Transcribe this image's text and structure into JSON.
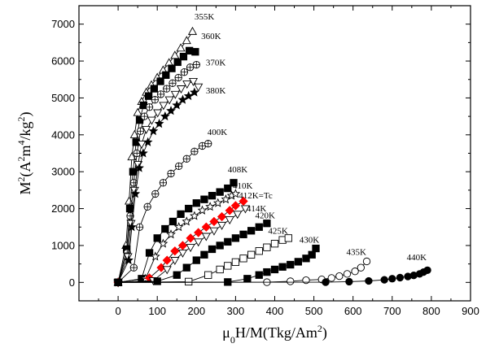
{
  "chart_data": {
    "type": "scatter",
    "title": "",
    "xlabel": "μ0H/M(Tkg/Am2)",
    "ylabel": "M2(A2m4/kg2)",
    "xlim": [
      -100,
      900
    ],
    "ylim": [
      -500,
      7500
    ],
    "xticks": [
      "0",
      "100",
      "200",
      "300",
      "400",
      "500",
      "600",
      "700",
      "800",
      "900"
    ],
    "yticks": [
      "0",
      "1000",
      "2000",
      "3000",
      "4000",
      "5000",
      "6000",
      "7000"
    ],
    "grid": false,
    "series": [
      {
        "name": "355K",
        "marker": "triangle-open",
        "color": "#000000",
        "label_anchor": [
          195,
          7120
        ],
        "points": [
          [
            0,
            0
          ],
          [
            20,
            1000
          ],
          [
            28,
            2200
          ],
          [
            35,
            3400
          ],
          [
            42,
            4000
          ],
          [
            50,
            4600
          ],
          [
            60,
            4900
          ],
          [
            72,
            5150
          ],
          [
            85,
            5350
          ],
          [
            100,
            5550
          ],
          [
            115,
            5750
          ],
          [
            130,
            5950
          ],
          [
            145,
            6150
          ],
          [
            160,
            6350
          ],
          [
            175,
            6550
          ],
          [
            190,
            6800
          ]
        ]
      },
      {
        "name": "360K",
        "marker": "square-filled",
        "color": "#000000",
        "label_anchor": [
          212,
          6600
        ],
        "points": [
          [
            0,
            0
          ],
          [
            22,
            900
          ],
          [
            30,
            2000
          ],
          [
            38,
            3000
          ],
          [
            46,
            3800
          ],
          [
            55,
            4400
          ],
          [
            65,
            4800
          ],
          [
            78,
            5050
          ],
          [
            92,
            5250
          ],
          [
            108,
            5450
          ],
          [
            122,
            5620
          ],
          [
            137,
            5800
          ],
          [
            152,
            5970
          ],
          [
            167,
            6120
          ],
          [
            182,
            6280
          ],
          [
            197,
            6250
          ]
        ]
      },
      {
        "name": "370K",
        "marker": "circle-plus",
        "color": "#000000",
        "label_anchor": [
          224,
          5880
        ],
        "points": [
          [
            0,
            0
          ],
          [
            23,
            800
          ],
          [
            31,
            1800
          ],
          [
            40,
            2700
          ],
          [
            48,
            3500
          ],
          [
            57,
            4100
          ],
          [
            67,
            4500
          ],
          [
            80,
            4750
          ],
          [
            94,
            4950
          ],
          [
            109,
            5100
          ],
          [
            124,
            5250
          ],
          [
            139,
            5400
          ],
          [
            154,
            5550
          ],
          [
            169,
            5700
          ],
          [
            184,
            5830
          ],
          [
            200,
            5900
          ]
        ]
      },
      {
        "name": "380K",
        "marker": "triangle-down-open",
        "color": "#000000",
        "label_anchor": [
          224,
          5120
        ],
        "points": [
          [
            0,
            0
          ],
          [
            25,
            700
          ],
          [
            33,
            1600
          ],
          [
            42,
            2500
          ],
          [
            51,
            3200
          ],
          [
            60,
            3750
          ],
          [
            72,
            4150
          ],
          [
            86,
            4400
          ],
          [
            101,
            4600
          ],
          [
            116,
            4800
          ],
          [
            131,
            4950
          ],
          [
            146,
            5100
          ],
          [
            161,
            5250
          ],
          [
            176,
            5380
          ],
          [
            192,
            5450
          ],
          [
            205,
            5300
          ]
        ]
      },
      {
        "name": "380K-stars",
        "marker": "star-filled",
        "color": "#000000",
        "label_anchor": null,
        "points": [
          [
            0,
            0
          ],
          [
            27,
            600
          ],
          [
            35,
            1500
          ],
          [
            44,
            2400
          ],
          [
            54,
            3100
          ],
          [
            64,
            3500
          ],
          [
            76,
            3800
          ],
          [
            90,
            4100
          ],
          [
            105,
            4300
          ],
          [
            120,
            4500
          ],
          [
            135,
            4650
          ],
          [
            150,
            4800
          ],
          [
            165,
            4950
          ],
          [
            180,
            5050
          ],
          [
            195,
            5150
          ]
        ]
      },
      {
        "name": "400K",
        "marker": "circle-plus",
        "color": "#000000",
        "label_anchor": [
          228,
          4000
        ],
        "points": [
          [
            0,
            0
          ],
          [
            40,
            400
          ],
          [
            55,
            1500
          ],
          [
            75,
            2050
          ],
          [
            95,
            2400
          ],
          [
            115,
            2700
          ],
          [
            135,
            2950
          ],
          [
            155,
            3150
          ],
          [
            175,
            3350
          ],
          [
            195,
            3550
          ],
          [
            215,
            3700
          ],
          [
            230,
            3760
          ]
        ]
      },
      {
        "name": "408K",
        "marker": "square-filled",
        "color": "#000000",
        "label_anchor": [
          280,
          2980
        ],
        "points": [
          [
            0,
            0
          ],
          [
            60,
            100
          ],
          [
            80,
            800
          ],
          [
            100,
            1200
          ],
          [
            120,
            1450
          ],
          [
            140,
            1650
          ],
          [
            160,
            1850
          ],
          [
            180,
            2000
          ],
          [
            200,
            2150
          ],
          [
            220,
            2250
          ],
          [
            240,
            2350
          ],
          [
            260,
            2450
          ],
          [
            280,
            2550
          ],
          [
            295,
            2700
          ]
        ]
      },
      {
        "name": "410K",
        "marker": "star-open",
        "color": "#000000",
        "label_anchor": [
          293,
          2540
        ],
        "points": [
          [
            0,
            0
          ],
          [
            70,
            100
          ],
          [
            95,
            700
          ],
          [
            115,
            1050
          ],
          [
            135,
            1300
          ],
          [
            155,
            1500
          ],
          [
            175,
            1650
          ],
          [
            195,
            1800
          ],
          [
            215,
            1950
          ],
          [
            235,
            2050
          ],
          [
            255,
            2150
          ],
          [
            275,
            2250
          ],
          [
            290,
            2350
          ],
          [
            300,
            2400
          ]
        ]
      },
      {
        "name": "412K=Tc",
        "marker": "diamond-filled",
        "color": "#ff0000",
        "label_anchor": [
          308,
          2280
        ],
        "points": [
          [
            0,
            0
          ],
          [
            80,
            120
          ],
          [
            110,
            400
          ],
          [
            125,
            600
          ],
          [
            145,
            850
          ],
          [
            165,
            1000
          ],
          [
            185,
            1200
          ],
          [
            205,
            1350
          ],
          [
            225,
            1500
          ],
          [
            245,
            1650
          ],
          [
            265,
            1780
          ],
          [
            285,
            1950
          ],
          [
            300,
            2080
          ],
          [
            320,
            2200
          ]
        ]
      },
      {
        "name": "414K",
        "marker": "triangle-down-open",
        "color": "#000000",
        "label_anchor": [
          328,
          1920
        ],
        "points": [
          [
            0,
            0
          ],
          [
            90,
            50
          ],
          [
            125,
            350
          ],
          [
            145,
            600
          ],
          [
            165,
            800
          ],
          [
            185,
            950
          ],
          [
            205,
            1100
          ],
          [
            225,
            1250
          ],
          [
            245,
            1400
          ],
          [
            265,
            1550
          ],
          [
            285,
            1700
          ],
          [
            305,
            1850
          ],
          [
            325,
            2000
          ]
        ]
      },
      {
        "name": "420K",
        "marker": "square-filled",
        "color": "#000000",
        "label_anchor": [
          350,
          1740
        ],
        "points": [
          [
            0,
            0
          ],
          [
            100,
            30
          ],
          [
            150,
            200
          ],
          [
            175,
            400
          ],
          [
            200,
            600
          ],
          [
            220,
            750
          ],
          [
            240,
            900
          ],
          [
            260,
            1000
          ],
          [
            280,
            1100
          ],
          [
            300,
            1200
          ],
          [
            320,
            1300
          ],
          [
            340,
            1400
          ],
          [
            360,
            1500
          ],
          [
            380,
            1600
          ]
        ]
      },
      {
        "name": "425K",
        "marker": "square-open",
        "color": "#000000",
        "label_anchor": [
          383,
          1320
        ],
        "points": [
          [
            0,
            0
          ],
          [
            180,
            20
          ],
          [
            230,
            200
          ],
          [
            260,
            350
          ],
          [
            280,
            450
          ],
          [
            300,
            550
          ],
          [
            320,
            650
          ],
          [
            340,
            750
          ],
          [
            360,
            850
          ],
          [
            380,
            950
          ],
          [
            400,
            1050
          ],
          [
            420,
            1150
          ],
          [
            435,
            1200
          ]
        ]
      },
      {
        "name": "430K",
        "marker": "square-filled",
        "color": "#000000",
        "label_anchor": [
          463,
          1080
        ],
        "points": [
          [
            0,
            0
          ],
          [
            280,
            10
          ],
          [
            330,
            100
          ],
          [
            360,
            200
          ],
          [
            380,
            280
          ],
          [
            400,
            350
          ],
          [
            420,
            420
          ],
          [
            440,
            480
          ],
          [
            460,
            560
          ],
          [
            480,
            650
          ],
          [
            495,
            750
          ],
          [
            505,
            920
          ]
        ]
      },
      {
        "name": "435K",
        "marker": "circle-open",
        "color": "#000000",
        "label_anchor": [
          583,
          750
        ],
        "points": [
          [
            0,
            0
          ],
          [
            380,
            5
          ],
          [
            440,
            30
          ],
          [
            480,
            60
          ],
          [
            520,
            80
          ],
          [
            545,
            120
          ],
          [
            565,
            170
          ],
          [
            585,
            230
          ],
          [
            605,
            300
          ],
          [
            620,
            400
          ],
          [
            635,
            570
          ]
        ]
      },
      {
        "name": "440K",
        "marker": "circle-filled",
        "color": "#000000",
        "label_anchor": [
          737,
          600
        ],
        "points": [
          [
            0,
            0
          ],
          [
            530,
            5
          ],
          [
            590,
            20
          ],
          [
            640,
            40
          ],
          [
            680,
            70
          ],
          [
            700,
            100
          ],
          [
            720,
            130
          ],
          [
            740,
            160
          ],
          [
            755,
            190
          ],
          [
            770,
            230
          ],
          [
            780,
            280
          ],
          [
            790,
            330
          ]
        ]
      }
    ]
  }
}
